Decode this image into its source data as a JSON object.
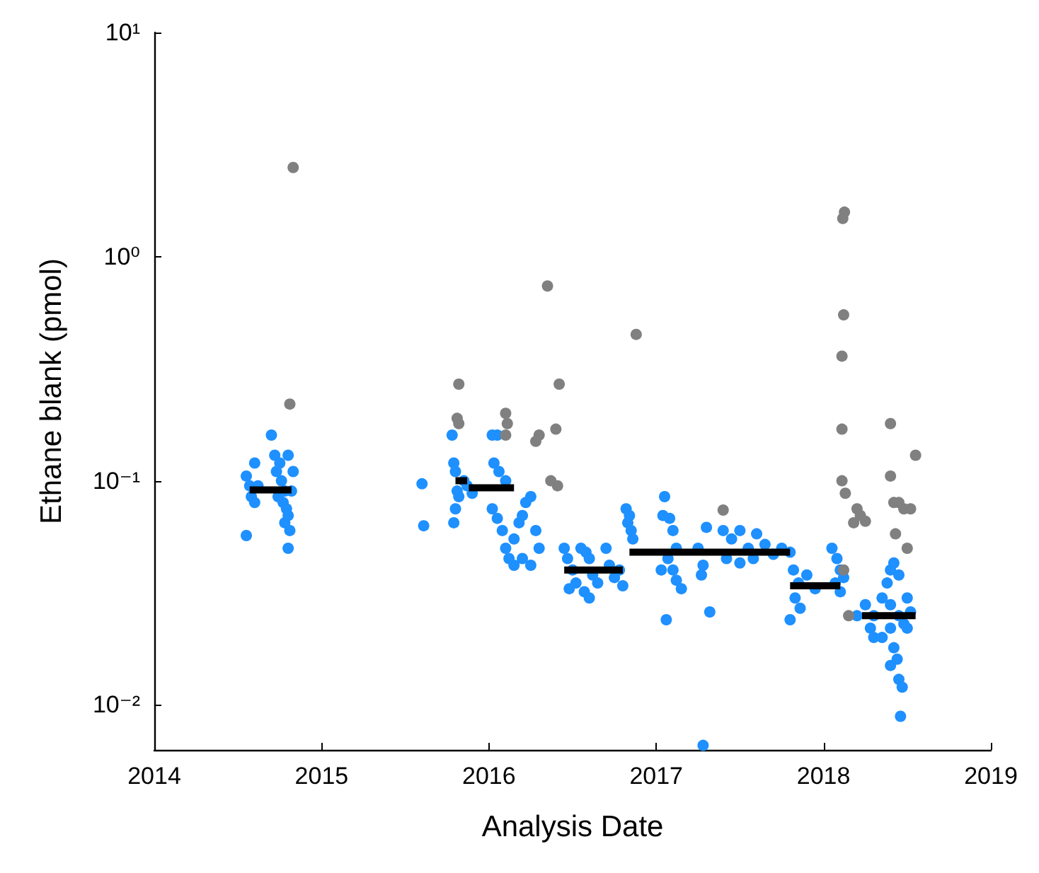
{
  "chart_data": {
    "type": "scatter",
    "xlabel": "Analysis Date",
    "ylabel": "Ethane blank (pmol)",
    "log": "y",
    "marker": "circle",
    "grid": false,
    "xlim": [
      2014,
      2019
    ],
    "xticks": [
      2014,
      2015,
      2016,
      2017,
      2018,
      2019
    ],
    "ylim": [
      0.0063,
      10
    ],
    "yticks": [
      {
        "value": 0.01,
        "label": "10⁻²"
      },
      {
        "value": 0.1,
        "label": "10⁻¹"
      },
      {
        "value": 1,
        "label": "10⁰"
      },
      {
        "value": 10,
        "label": "10¹"
      }
    ],
    "series": [
      {
        "color": "#1e90ff",
        "x": [
          2014.55,
          2014.57,
          2014.6,
          2014.58,
          2014.55,
          2014.7,
          2014.72,
          2014.75,
          2014.73,
          2014.76,
          2014.78,
          2014.74,
          2014.77,
          2014.79,
          2014.8,
          2014.78,
          2014.81,
          2014.8,
          2014.82,
          2014.8,
          2014.83,
          2014.62,
          2014.6,
          2015.6,
          2015.61,
          2015.78,
          2015.79,
          2015.8,
          2015.81,
          2015.82,
          2015.8,
          2015.79,
          2015.85,
          2015.87,
          2015.9,
          2016.02,
          2016.05,
          2016.03,
          2016.06,
          2016.1,
          2016.02,
          2016.05,
          2016.08,
          2016.1,
          2016.12,
          2016.15,
          2016.18,
          2016.2,
          2016.22,
          2016.25,
          2016.28,
          2016.3,
          2016.15,
          2016.2,
          2016.25,
          2016.45,
          2016.47,
          2016.5,
          2016.52,
          2016.48,
          2016.55,
          2016.58,
          2016.6,
          2016.62,
          2016.65,
          2016.57,
          2016.6,
          2016.7,
          2016.72,
          2016.75,
          2016.78,
          2016.8,
          2016.82,
          2016.84,
          2016.83,
          2016.85,
          2016.86,
          2017.05,
          2017.04,
          2017.08,
          2017.1,
          2017.12,
          2017.07,
          2017.1,
          2017.12,
          2017.15,
          2017.03,
          2017.06,
          2017.3,
          2017.25,
          2017.28,
          2017.27,
          2017.32,
          2017.28,
          2017.4,
          2017.45,
          2017.5,
          2017.55,
          2017.6,
          2017.65,
          2017.7,
          2017.75,
          2017.42,
          2017.5,
          2017.58,
          2017.8,
          2017.82,
          2017.85,
          2017.83,
          2017.86,
          2017.8,
          2017.9,
          2017.95,
          2018.05,
          2018.08,
          2018.1,
          2018.07,
          2018.12,
          2018.1,
          2018.2,
          2018.25,
          2018.3,
          2018.35,
          2018.28,
          2018.3,
          2018.4,
          2018.42,
          2018.45,
          2018.38,
          2018.4,
          2018.45,
          2018.48,
          2018.5,
          2018.42,
          2018.44,
          2018.4,
          2018.45,
          2018.47,
          2018.46,
          2018.5,
          2018.52,
          2018.35,
          2018.4
        ],
        "values": [
          0.105,
          0.095,
          0.12,
          0.085,
          0.057,
          0.16,
          0.13,
          0.12,
          0.11,
          0.1,
          0.09,
          0.085,
          0.08,
          0.075,
          0.07,
          0.065,
          0.06,
          0.05,
          0.09,
          0.13,
          0.11,
          0.095,
          0.08,
          0.097,
          0.063,
          0.16,
          0.12,
          0.11,
          0.09,
          0.085,
          0.075,
          0.065,
          0.1,
          0.095,
          0.088,
          0.16,
          0.16,
          0.12,
          0.11,
          0.1,
          0.075,
          0.068,
          0.06,
          0.05,
          0.045,
          0.055,
          0.065,
          0.07,
          0.08,
          0.085,
          0.06,
          0.05,
          0.042,
          0.045,
          0.042,
          0.05,
          0.045,
          0.04,
          0.035,
          0.033,
          0.05,
          0.048,
          0.045,
          0.038,
          0.035,
          0.032,
          0.03,
          0.05,
          0.042,
          0.037,
          0.04,
          0.034,
          0.075,
          0.07,
          0.065,
          0.06,
          0.055,
          0.085,
          0.07,
          0.068,
          0.06,
          0.05,
          0.045,
          0.04,
          0.036,
          0.033,
          0.04,
          0.024,
          0.062,
          0.05,
          0.042,
          0.038,
          0.026,
          0.0066,
          0.06,
          0.055,
          0.06,
          0.05,
          0.058,
          0.052,
          0.047,
          0.05,
          0.045,
          0.043,
          0.045,
          0.048,
          0.04,
          0.035,
          0.03,
          0.027,
          0.024,
          0.038,
          0.033,
          0.05,
          0.045,
          0.04,
          0.035,
          0.037,
          0.032,
          0.025,
          0.028,
          0.025,
          0.03,
          0.022,
          0.02,
          0.04,
          0.043,
          0.038,
          0.035,
          0.028,
          0.025,
          0.023,
          0.022,
          0.018,
          0.016,
          0.015,
          0.013,
          0.012,
          0.0089,
          0.03,
          0.026,
          0.02,
          0.022
        ]
      },
      {
        "color": "#808080",
        "x": [
          2014.83,
          2014.81,
          2015.82,
          2015.81,
          2015.82,
          2016.1,
          2016.11,
          2016.1,
          2016.35,
          2016.3,
          2016.28,
          2016.42,
          2016.4,
          2016.37,
          2016.41,
          2016.88,
          2017.4,
          2018.125,
          2018.115,
          2018.12,
          2018.11,
          2018.11,
          2018.11,
          2018.13,
          2018.2,
          2018.22,
          2018.18,
          2018.25,
          2018.12,
          2018.15,
          2018.4,
          2018.4,
          2018.42,
          2018.45,
          2018.48,
          2018.43,
          2018.5,
          2018.55,
          2018.52
        ],
        "values": [
          2.5,
          0.22,
          0.27,
          0.19,
          0.18,
          0.2,
          0.18,
          0.16,
          0.74,
          0.16,
          0.15,
          0.27,
          0.17,
          0.1,
          0.095,
          0.45,
          0.074,
          1.58,
          1.48,
          0.55,
          0.36,
          0.17,
          0.1,
          0.088,
          0.075,
          0.07,
          0.065,
          0.066,
          0.04,
          0.025,
          0.18,
          0.105,
          0.08,
          0.08,
          0.075,
          0.058,
          0.05,
          0.13,
          0.075
        ]
      },
      {
        "type": "line",
        "marker": "none",
        "color": "#000000",
        "x": [
          2014.57,
          2014.82,
          null,
          2015.8,
          2015.87,
          null,
          2015.88,
          2016.15,
          null,
          2016.45,
          2016.8,
          null,
          2016.84,
          2017.8,
          null,
          2017.8,
          2018.1,
          null,
          2018.23,
          2018.55
        ],
        "values": [
          0.091,
          0.091,
          null,
          0.1,
          0.1,
          null,
          0.093,
          0.093,
          null,
          0.04,
          0.04,
          null,
          0.048,
          0.048,
          null,
          0.034,
          0.034,
          null,
          0.025,
          0.025
        ]
      }
    ]
  }
}
